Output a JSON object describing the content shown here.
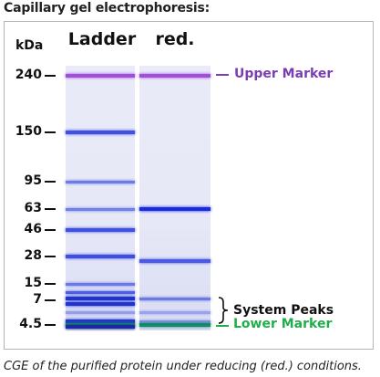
{
  "title": "Capillary gel electrophoresis:",
  "unit_label": "kDa",
  "lanes": [
    {
      "name": "Ladder",
      "bands": [
        {
          "kda": 240,
          "color": "#a24fd8",
          "strength": 1.0
        },
        {
          "kda": 150,
          "color": "#3344dd",
          "strength": 0.85
        },
        {
          "kda": 95,
          "color": "#4a5de0",
          "strength": 0.6
        },
        {
          "kda": 63,
          "color": "#4a5de0",
          "strength": 0.55
        },
        {
          "kda": 46,
          "color": "#3344dd",
          "strength": 0.85
        },
        {
          "kda": 28,
          "color": "#3344dd",
          "strength": 0.85
        },
        {
          "kda": 15,
          "color": "#4a5de0",
          "strength": 0.6
        },
        {
          "kda": 10,
          "color": "#3344dd",
          "strength": 0.7
        },
        {
          "kda": 7.5,
          "color": "#2233cc",
          "strength": 1.0
        },
        {
          "kda": 6.6,
          "color": "#2233cc",
          "strength": 1.0
        },
        {
          "kda": 5.6,
          "color": "#7a86e6",
          "strength": 0.5
        },
        {
          "kda": 4.8,
          "color": "#2233cc",
          "strength": 1.0
        },
        {
          "kda": 4.5,
          "color": "#128a6a",
          "strength": 1.0
        },
        {
          "kda": 4.3,
          "color": "#1a2aa0",
          "strength": 1.0
        }
      ]
    },
    {
      "name": "red.",
      "bands": [
        {
          "kda": 240,
          "color": "#a24fd8",
          "strength": 1.0
        },
        {
          "kda": 63,
          "color": "#1a2ae0",
          "strength": 1.0
        },
        {
          "kda": 25,
          "color": "#3344dd",
          "strength": 0.75
        },
        {
          "kda": 7.5,
          "color": "#5566dd",
          "strength": 0.7
        },
        {
          "kda": 5.6,
          "color": "#7a86e6",
          "strength": 0.4
        },
        {
          "kda": 4.8,
          "color": "#6676e0",
          "strength": 0.5
        },
        {
          "kda": 4.5,
          "color": "#128a6a",
          "strength": 1.0
        }
      ]
    }
  ],
  "ticks": [
    {
      "label": "240",
      "kda": 240
    },
    {
      "label": "150",
      "kda": 150
    },
    {
      "label": "95",
      "kda": 95
    },
    {
      "label": "63",
      "kda": 63
    },
    {
      "label": "46",
      "kda": 46
    },
    {
      "label": "28",
      "kda": 28
    },
    {
      "label": "15",
      "kda": 15
    },
    {
      "label": "7",
      "kda": 7
    },
    {
      "label": "4.5",
      "kda": 4.5
    }
  ],
  "annotations": {
    "upper_marker": {
      "label": "Upper Marker",
      "color": "#7a3db3"
    },
    "system_peaks": {
      "label": "System Peaks",
      "color": "#111111"
    },
    "lower_marker": {
      "label": "Lower Marker",
      "color": "#1fae4a"
    }
  },
  "caption": "CGE of the purified protein under reducing (red.) conditions."
}
